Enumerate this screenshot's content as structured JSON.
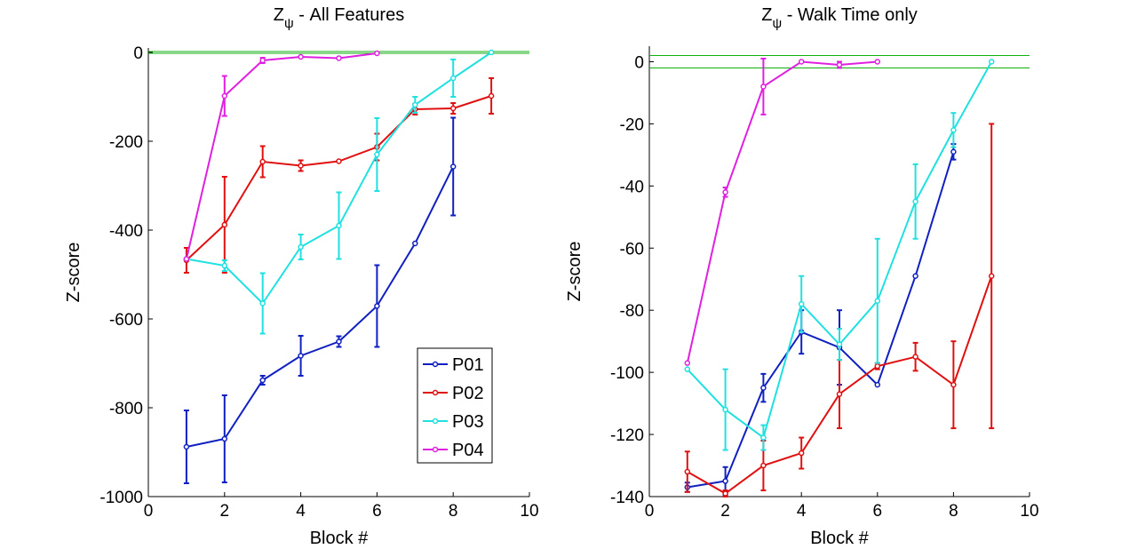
{
  "chart_data": [
    {
      "type": "line",
      "title": "Z",
      "title_subscript": "ψ",
      "title_rest": " - All Features",
      "xlabel": "Block #",
      "ylabel": "Z-score",
      "xlim": [
        0,
        10
      ],
      "ylim": [
        -1000,
        10
      ],
      "x_ticks": [
        0,
        2,
        4,
        6,
        8,
        10
      ],
      "y_ticks": [
        0,
        -200,
        -400,
        -600,
        -800,
        -1000
      ],
      "reference_lines": [
        -2,
        2
      ],
      "legend": {
        "position": "bottom-right",
        "entries": [
          "P01",
          "P02",
          "P03",
          "P04"
        ]
      },
      "series": [
        {
          "name": "P01",
          "color": "#1020c0",
          "x": [
            1,
            2,
            3,
            4,
            5,
            6,
            7,
            8
          ],
          "y": [
            -888,
            -870,
            -738,
            -683,
            -651,
            -571,
            -430,
            -257
          ],
          "err": [
            82,
            98,
            10,
            45,
            12,
            92,
            0,
            110
          ]
        },
        {
          "name": "P02",
          "color": "#e01010",
          "x": [
            1,
            2,
            3,
            4,
            5,
            6,
            7,
            8,
            9
          ],
          "y": [
            -468,
            -388,
            -246,
            -255,
            -245,
            -213,
            -128,
            -126,
            -98
          ],
          "err": [
            28,
            108,
            35,
            12,
            0,
            30,
            12,
            12,
            40
          ]
        },
        {
          "name": "P03",
          "color": "#20e0e0",
          "x": [
            1,
            2,
            3,
            4,
            5,
            6,
            7,
            8,
            9
          ],
          "y": [
            -465,
            -480,
            -565,
            -438,
            -390,
            -230,
            -118,
            -58,
            0
          ],
          "err": [
            0,
            12,
            68,
            28,
            75,
            82,
            18,
            42,
            0
          ]
        },
        {
          "name": "P04",
          "color": "#e020e0",
          "x": [
            1,
            2,
            3,
            4,
            5,
            6
          ],
          "y": [
            -465,
            -98,
            -18,
            -10,
            -13,
            -2
          ],
          "err": [
            0,
            45,
            6,
            0,
            0,
            0
          ]
        }
      ]
    },
    {
      "type": "line",
      "title": "Z",
      "title_subscript": "ψ",
      "title_rest": " - Walk Time only",
      "xlabel": "Block #",
      "ylabel": "Z-score",
      "xlim": [
        0,
        10
      ],
      "ylim": [
        -140,
        5
      ],
      "x_ticks": [
        0,
        2,
        4,
        6,
        8,
        10
      ],
      "y_ticks": [
        0,
        -20,
        -40,
        -60,
        -80,
        -100,
        -120,
        -140
      ],
      "reference_lines": [
        -2,
        2
      ],
      "series": [
        {
          "name": "P01",
          "color": "#1020c0",
          "x": [
            1,
            2,
            3,
            4,
            5,
            6,
            7,
            8
          ],
          "y": [
            -137,
            -135,
            -105,
            -87,
            -92,
            -104,
            -69,
            -29
          ],
          "err": [
            1.5,
            4.5,
            4.5,
            7,
            12,
            0,
            0,
            2.5
          ]
        },
        {
          "name": "P02",
          "color": "#e01010",
          "x": [
            1,
            2,
            3,
            4,
            5,
            6,
            7,
            8,
            9
          ],
          "y": [
            -132,
            -139,
            -130,
            -126,
            -107,
            -98,
            -95,
            -104,
            -69
          ],
          "err": [
            6.5,
            1,
            8,
            5,
            11,
            1,
            4.5,
            14,
            49
          ]
        },
        {
          "name": "P03",
          "color": "#20e0e0",
          "x": [
            1,
            2,
            3,
            4,
            5,
            6,
            7,
            8,
            9
          ],
          "y": [
            -99,
            -112,
            -121,
            -78,
            -91,
            -77,
            -45,
            -22,
            0
          ],
          "err": [
            0,
            13,
            4,
            9,
            5,
            20,
            12,
            5.5,
            0
          ]
        },
        {
          "name": "P04",
          "color": "#e020e0",
          "x": [
            1,
            2,
            3,
            4,
            5,
            6
          ],
          "y": [
            -97,
            -42,
            -8,
            0,
            -1,
            0
          ],
          "err": [
            0,
            1.5,
            9,
            0,
            1,
            0
          ]
        }
      ]
    }
  ]
}
